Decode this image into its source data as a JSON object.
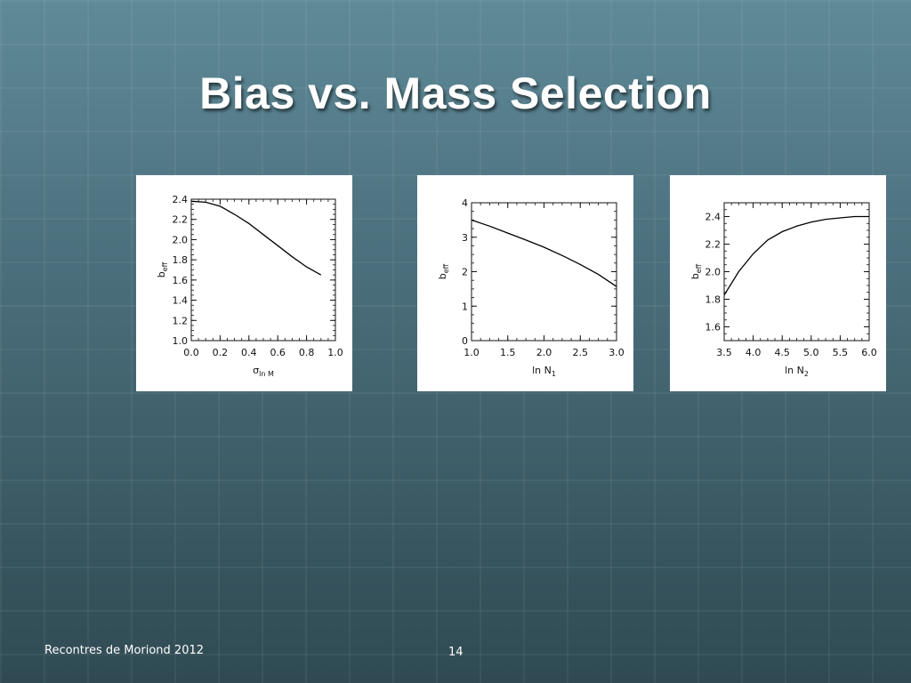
{
  "slide": {
    "title": "Bias vs. Mass Selection",
    "footer": "Recontres de Moriond 2012",
    "page_number": "14"
  },
  "chart_data": [
    {
      "type": "line",
      "xlabel": "σ",
      "xlabel_sub": "ln M",
      "ylabel": "b",
      "ylabel_sub": "eff",
      "xlim": [
        0.0,
        1.0
      ],
      "ylim": [
        1.0,
        2.4
      ],
      "xticks": [
        "0.0",
        "0.2",
        "0.4",
        "0.6",
        "0.8",
        "1.0"
      ],
      "yticks": [
        "1.0",
        "1.2",
        "1.4",
        "1.6",
        "1.8",
        "2.0",
        "2.2",
        "2.4"
      ],
      "series": [
        {
          "x": [
            0.0,
            0.1,
            0.2,
            0.3,
            0.4,
            0.5,
            0.6,
            0.7,
            0.8,
            0.9
          ],
          "y": [
            2.38,
            2.37,
            2.33,
            2.25,
            2.16,
            2.05,
            1.94,
            1.83,
            1.73,
            1.65
          ]
        }
      ]
    },
    {
      "type": "line",
      "xlabel": "ln N",
      "xlabel_sub": "1",
      "ylabel": "b",
      "ylabel_sub": "eff",
      "xlim": [
        1.0,
        3.0
      ],
      "ylim": [
        0,
        4
      ],
      "xticks": [
        "1.0",
        "1.5",
        "2.0",
        "2.5",
        "3.0"
      ],
      "yticks": [
        "0",
        "1",
        "2",
        "3",
        "4"
      ],
      "series": [
        {
          "x": [
            1.0,
            1.25,
            1.5,
            1.75,
            2.0,
            2.25,
            2.5,
            2.75,
            3.0
          ],
          "y": [
            3.5,
            3.32,
            3.12,
            2.92,
            2.71,
            2.47,
            2.21,
            1.92,
            1.57
          ]
        }
      ]
    },
    {
      "type": "line",
      "xlabel": "ln N",
      "xlabel_sub": "2",
      "ylabel": "b",
      "ylabel_sub": "eff",
      "xlim": [
        3.5,
        6.0
      ],
      "ylim": [
        1.5,
        2.5
      ],
      "xticks": [
        "3.5",
        "4.0",
        "4.5",
        "5.0",
        "5.5",
        "6.0"
      ],
      "yticks": [
        "1.6",
        "1.8",
        "2.0",
        "2.2",
        "2.4"
      ],
      "series": [
        {
          "x": [
            3.5,
            3.75,
            4.0,
            4.25,
            4.5,
            4.75,
            5.0,
            5.25,
            5.5,
            5.75,
            6.0
          ],
          "y": [
            1.83,
            2.0,
            2.13,
            2.23,
            2.29,
            2.33,
            2.36,
            2.38,
            2.39,
            2.4,
            2.4
          ]
        }
      ]
    }
  ]
}
